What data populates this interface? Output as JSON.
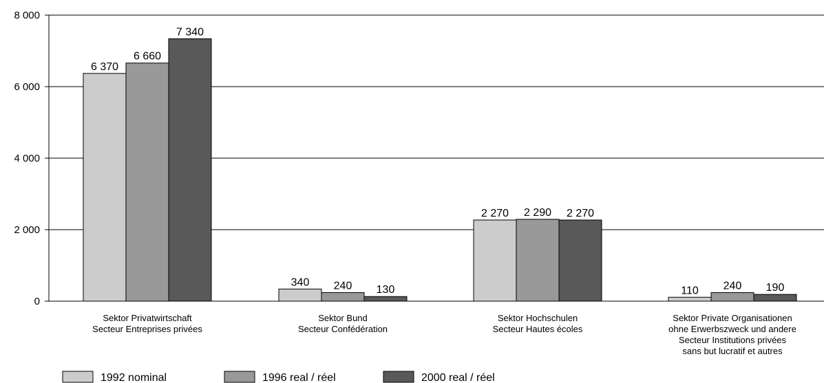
{
  "chart_data": {
    "type": "bar",
    "categories": [
      [
        "Sektor Privatwirtschaft",
        "Secteur Entreprises privées"
      ],
      [
        "Sektor Bund",
        "Secteur Confédération"
      ],
      [
        "Sektor Hochschulen",
        "Secteur Hautes écoles"
      ],
      [
        "Sektor Private Organisationen",
        "ohne Erwerbszweck und andere",
        "Secteur Institutions privées",
        "sans but lucratif et autres"
      ]
    ],
    "series": [
      {
        "name": "1992 nominal",
        "color": "#cccccc",
        "values": [
          6370,
          340,
          2270,
          110
        ],
        "labels": [
          "6 370",
          "340",
          "2 270",
          "110"
        ]
      },
      {
        "name": "1996 real / réel",
        "color": "#999999",
        "values": [
          6660,
          240,
          2290,
          240
        ],
        "labels": [
          "6 660",
          "240",
          "2 290",
          "240"
        ]
      },
      {
        "name": "2000 real / réel",
        "color": "#595959",
        "values": [
          7340,
          130,
          2270,
          190
        ],
        "labels": [
          "7 340",
          "130",
          "2 270",
          "190"
        ]
      }
    ],
    "y_ticks": [
      {
        "value": 0,
        "label": "0"
      },
      {
        "value": 2000,
        "label": "2 000"
      },
      {
        "value": 4000,
        "label": "4 000"
      },
      {
        "value": 6000,
        "label": "6 000"
      },
      {
        "value": 8000,
        "label": "8 000"
      }
    ],
    "ylim": [
      0,
      8000
    ],
    "grid": true,
    "legend_position": "bottom-left"
  }
}
